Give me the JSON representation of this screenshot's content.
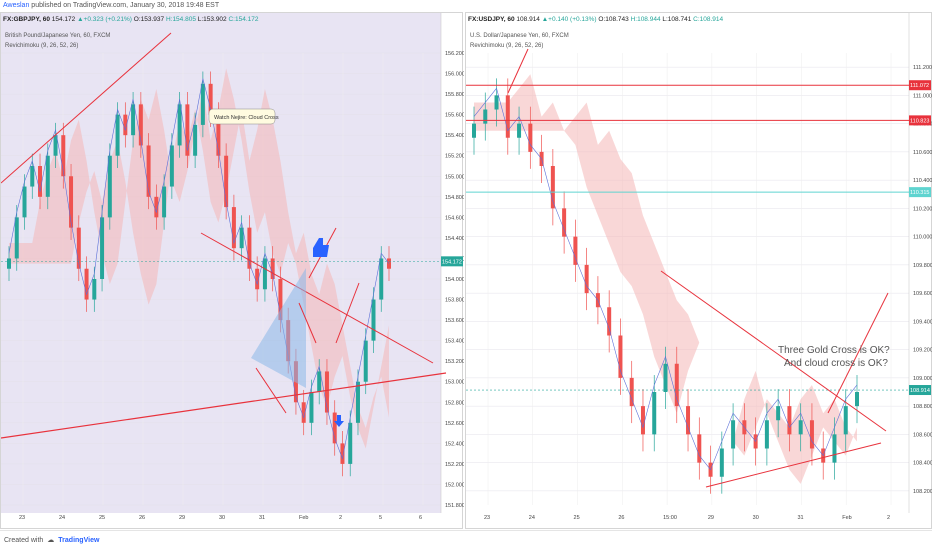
{
  "page": {
    "author": "Aweslan",
    "published_text": "published on TradingView.com, January 30, 2018 19:48 EST",
    "footer_created": "Created with",
    "footer_brand": "TradingView"
  },
  "colors": {
    "up": "#26a69a",
    "down": "#ef5350",
    "bull_cloud": "#c6e8c4",
    "bear_cloud": "#f4b6b6",
    "trendline": "#e8323c",
    "callout": "#2962ff",
    "left_bg": "#e8e4f3",
    "right_bg": "#ffffff"
  },
  "chart_data": [
    {
      "type": "candlestick",
      "symbol_line": {
        "symbol": "FX:GBPJPY, 60",
        "o_label": "154.172",
        "chg": "▲+0.323 (+0.21%)",
        "o": "O:153.937",
        "h": "H:154.805",
        "l": "L:153.902",
        "c": "C:154.172"
      },
      "title": "British Pound/Japanese Yen, 60, FXCM",
      "indicator": "Revichimoku (9, 26, 52, 26)",
      "annotation": "Watch Nejire: Cloud Cross",
      "price_ticks": [
        "156.200",
        "156.000",
        "155.800",
        "155.600",
        "155.400",
        "155.200",
        "155.000",
        "154.800",
        "154.600",
        "154.400",
        "154.200",
        "154.000",
        "153.800",
        "153.600",
        "153.400",
        "153.200",
        "153.000",
        "152.800",
        "152.600",
        "152.400",
        "152.200",
        "152.000",
        "151.800"
      ],
      "ylim": [
        151.8,
        156.2
      ],
      "x_ticks": [
        "23",
        "24",
        "25",
        "26",
        "29",
        "30",
        "31",
        "Feb",
        "2",
        "5",
        "6"
      ],
      "last_price": "154.172",
      "close_series": [
        154.2,
        154.6,
        154.9,
        155.1,
        154.8,
        155.2,
        155.4,
        155.0,
        154.5,
        154.1,
        153.8,
        154.0,
        154.6,
        155.2,
        155.6,
        155.4,
        155.7,
        155.3,
        154.8,
        154.6,
        154.9,
        155.3,
        155.7,
        155.2,
        155.5,
        155.9,
        155.6,
        155.2,
        154.7,
        154.3,
        154.5,
        154.1,
        153.9,
        154.2,
        154.0,
        153.6,
        153.2,
        152.8,
        152.6,
        152.9,
        153.1,
        152.7,
        152.4,
        152.2,
        152.6,
        153.0,
        153.4,
        153.8,
        154.2,
        154.1
      ]
    },
    {
      "type": "candlestick",
      "symbol_line": {
        "symbol": "FX:USDJPY, 60",
        "o_label": "108.914",
        "chg": "▲+0.140 (+0.13%)",
        "o": "O:108.743",
        "h": "H:108.944",
        "l": "L:108.741",
        "c": "C:108.914"
      },
      "title": "U.S. Dollar/Japanese Yen, 60, FXCM",
      "indicator": "Revichimoku (9, 26, 52, 26)",
      "annotation_lines": [
        "Three Gold Cross is OK?",
        "And cloud cross is OK?"
      ],
      "price_ticks": [
        "111.200",
        "111.000",
        "110.800",
        "110.600",
        "110.400",
        "110.200",
        "110.000",
        "109.800",
        "109.600",
        "109.400",
        "109.200",
        "109.000",
        "108.800",
        "108.600",
        "108.400",
        "108.200"
      ],
      "ylim": [
        108.1,
        111.3
      ],
      "x_ticks": [
        "23",
        "24",
        "25",
        "26",
        "15:00",
        "29",
        "30",
        "31",
        "Feb",
        "2"
      ],
      "levels": [
        {
          "label": "111.072",
          "value": 111.072,
          "kind": "resistance"
        },
        {
          "label": "110.823",
          "value": 110.823,
          "kind": "resistance"
        },
        {
          "label": "110.315",
          "value": 110.315,
          "kind": "support"
        },
        {
          "label": "108.914",
          "value": 108.914,
          "kind": "last"
        }
      ],
      "close_series": [
        110.8,
        110.9,
        111.0,
        110.7,
        110.8,
        110.6,
        110.5,
        110.2,
        110.0,
        109.8,
        109.6,
        109.5,
        109.3,
        109.0,
        108.8,
        108.6,
        108.9,
        109.1,
        108.8,
        108.6,
        108.4,
        108.3,
        108.5,
        108.7,
        108.6,
        108.5,
        108.7,
        108.8,
        108.6,
        108.7,
        108.5,
        108.4,
        108.6,
        108.8,
        108.9
      ]
    }
  ]
}
